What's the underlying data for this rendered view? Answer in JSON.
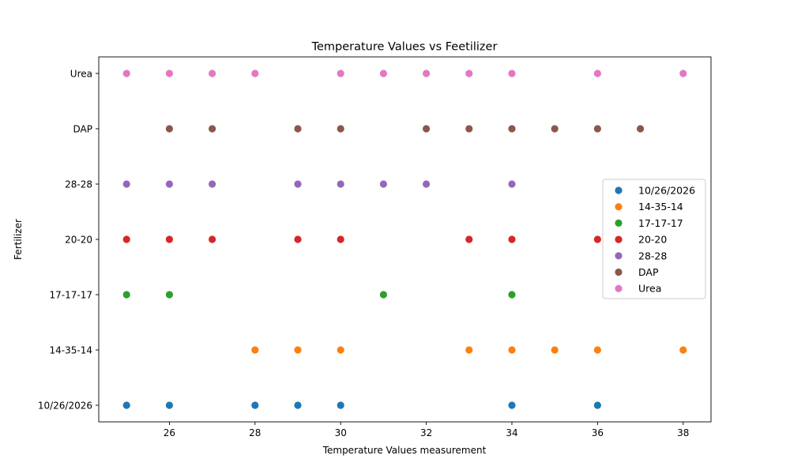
{
  "chart_data": {
    "type": "scatter",
    "title": "Temperature Values vs Feetilizer",
    "xlabel": "Temperature Values measurement",
    "ylabel": "Fertilizer",
    "xlim": [
      24.35,
      38.65
    ],
    "xticks": [
      26,
      28,
      30,
      32,
      34,
      36,
      38
    ],
    "categories": [
      "10/26/2026",
      "14-35-14",
      "17-17-17",
      "20-20",
      "28-28",
      "DAP",
      "Urea"
    ],
    "grid": false,
    "legend_position": "center-right",
    "series": [
      {
        "name": "10/26/2026",
        "color": "#1f77b4",
        "x": [
          25,
          26,
          28,
          29,
          30,
          34,
          36
        ]
      },
      {
        "name": "14-35-14",
        "color": "#ff7f0e",
        "x": [
          28,
          29,
          30,
          33,
          34,
          35,
          36,
          38
        ]
      },
      {
        "name": "17-17-17",
        "color": "#2ca02c",
        "x": [
          25,
          26,
          31,
          34
        ]
      },
      {
        "name": "20-20",
        "color": "#d62728",
        "x": [
          25,
          26,
          27,
          29,
          30,
          33,
          34,
          36
        ]
      },
      {
        "name": "28-28",
        "color": "#9467bd",
        "x": [
          25,
          26,
          27,
          29,
          30,
          31,
          32,
          34
        ]
      },
      {
        "name": "DAP",
        "color": "#8c564b",
        "x": [
          26,
          27,
          29,
          30,
          32,
          33,
          34,
          35,
          36,
          37
        ]
      },
      {
        "name": "Urea",
        "color": "#e377c2",
        "x": [
          25,
          26,
          27,
          28,
          30,
          31,
          32,
          33,
          34,
          36,
          38
        ]
      }
    ]
  }
}
